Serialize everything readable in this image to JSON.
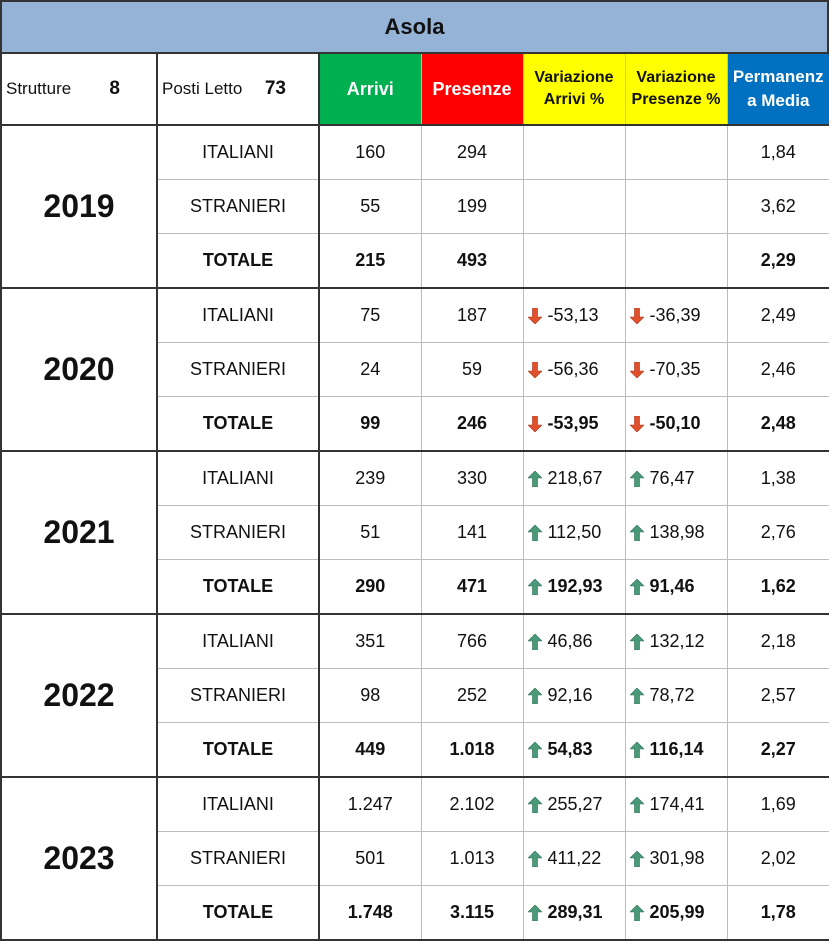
{
  "title": "Asola",
  "header": {
    "strutture_label": "Strutture",
    "strutture_value": "8",
    "posti_label": "Posti Letto",
    "posti_value": "73",
    "arrivi": "Arrivi",
    "presenze": "Presenze",
    "var_arrivi": "Variazione Arrivi %",
    "var_presenze": "Variazione Presenze %",
    "permanenza": "Permanenz a Media"
  },
  "colors": {
    "title_bg": "#95b3d7",
    "arrivi_bg": "#00b050",
    "presenze_bg": "#ff0000",
    "variazione_bg": "#ffff00",
    "permanenza_bg": "#0070c0",
    "arrow_up": "#4a9a7a",
    "arrow_down": "#e0502a"
  },
  "years": [
    {
      "year": "2019",
      "rows": [
        {
          "label": "ITALIANI",
          "arrivi": "160",
          "presenze": "294",
          "var_arrivi": "",
          "var_arrivi_dir": "",
          "var_presenze": "",
          "var_presenze_dir": "",
          "permanenza": "1,84"
        },
        {
          "label": "STRANIERI",
          "arrivi": "55",
          "presenze": "199",
          "var_arrivi": "",
          "var_arrivi_dir": "",
          "var_presenze": "",
          "var_presenze_dir": "",
          "permanenza": "3,62"
        },
        {
          "label": "TOTALE",
          "arrivi": "215",
          "presenze": "493",
          "var_arrivi": "",
          "var_arrivi_dir": "",
          "var_presenze": "",
          "var_presenze_dir": "",
          "permanenza": "2,29"
        }
      ]
    },
    {
      "year": "2020",
      "rows": [
        {
          "label": "ITALIANI",
          "arrivi": "75",
          "presenze": "187",
          "var_arrivi": "-53,13",
          "var_arrivi_dir": "down",
          "var_presenze": "-36,39",
          "var_presenze_dir": "down",
          "permanenza": "2,49"
        },
        {
          "label": "STRANIERI",
          "arrivi": "24",
          "presenze": "59",
          "var_arrivi": "-56,36",
          "var_arrivi_dir": "down",
          "var_presenze": "-70,35",
          "var_presenze_dir": "down",
          "permanenza": "2,46"
        },
        {
          "label": "TOTALE",
          "arrivi": "99",
          "presenze": "246",
          "var_arrivi": "-53,95",
          "var_arrivi_dir": "down",
          "var_presenze": "-50,10",
          "var_presenze_dir": "down",
          "permanenza": "2,48"
        }
      ]
    },
    {
      "year": "2021",
      "rows": [
        {
          "label": "ITALIANI",
          "arrivi": "239",
          "presenze": "330",
          "var_arrivi": "218,67",
          "var_arrivi_dir": "up",
          "var_presenze": "76,47",
          "var_presenze_dir": "up",
          "permanenza": "1,38"
        },
        {
          "label": "STRANIERI",
          "arrivi": "51",
          "presenze": "141",
          "var_arrivi": "112,50",
          "var_arrivi_dir": "up",
          "var_presenze": "138,98",
          "var_presenze_dir": "up",
          "permanenza": "2,76"
        },
        {
          "label": "TOTALE",
          "arrivi": "290",
          "presenze": "471",
          "var_arrivi": "192,93",
          "var_arrivi_dir": "up",
          "var_presenze": "91,46",
          "var_presenze_dir": "up",
          "permanenza": "1,62"
        }
      ]
    },
    {
      "year": "2022",
      "rows": [
        {
          "label": "ITALIANI",
          "arrivi": "351",
          "presenze": "766",
          "var_arrivi": "46,86",
          "var_arrivi_dir": "up",
          "var_presenze": "132,12",
          "var_presenze_dir": "up",
          "permanenza": "2,18"
        },
        {
          "label": "STRANIERI",
          "arrivi": "98",
          "presenze": "252",
          "var_arrivi": "92,16",
          "var_arrivi_dir": "up",
          "var_presenze": "78,72",
          "var_presenze_dir": "up",
          "permanenza": "2,57"
        },
        {
          "label": "TOTALE",
          "arrivi": "449",
          "presenze": "1.018",
          "var_arrivi": "54,83",
          "var_arrivi_dir": "up",
          "var_presenze": "116,14",
          "var_presenze_dir": "up",
          "permanenza": "2,27"
        }
      ]
    },
    {
      "year": "2023",
      "rows": [
        {
          "label": "ITALIANI",
          "arrivi": "1.247",
          "presenze": "2.102",
          "var_arrivi": "255,27",
          "var_arrivi_dir": "up",
          "var_presenze": "174,41",
          "var_presenze_dir": "up",
          "permanenza": "1,69"
        },
        {
          "label": "STRANIERI",
          "arrivi": "501",
          "presenze": "1.013",
          "var_arrivi": "411,22",
          "var_arrivi_dir": "up",
          "var_presenze": "301,98",
          "var_presenze_dir": "up",
          "permanenza": "2,02"
        },
        {
          "label": "TOTALE",
          "arrivi": "1.748",
          "presenze": "3.115",
          "var_arrivi": "289,31",
          "var_arrivi_dir": "up",
          "var_presenze": "205,99",
          "var_presenze_dir": "up",
          "permanenza": "1,78"
        }
      ]
    }
  ]
}
